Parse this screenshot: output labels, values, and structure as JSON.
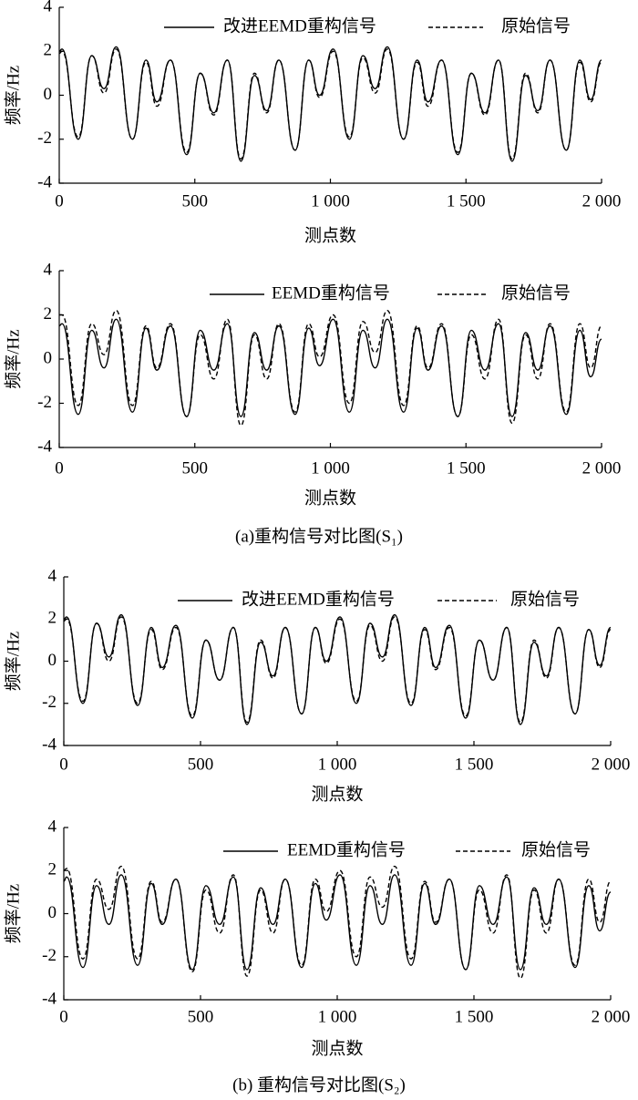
{
  "chart_data": [
    {
      "type": "line",
      "x_label": "测点数",
      "y_label": "频率/Hz",
      "x": [
        0,
        10,
        70,
        120,
        165,
        210,
        270,
        320,
        360,
        410,
        470,
        520,
        570,
        620,
        670,
        720,
        765,
        810,
        870,
        920,
        960,
        1010,
        1070,
        1120,
        1165,
        1210,
        1270,
        1320,
        1360,
        1410,
        1470,
        1520,
        1570,
        1620,
        1670,
        1720,
        1765,
        1810,
        1870,
        1920,
        1960,
        2000
      ],
      "series": [
        {
          "name": "改进EEMD重构信号",
          "color": "#000000",
          "dashed": false,
          "values": [
            2.0,
            2.1,
            -2.0,
            1.8,
            0.3,
            2.2,
            -2.0,
            1.6,
            -0.3,
            1.6,
            -2.7,
            1.0,
            -0.8,
            1.6,
            -3.0,
            0.9,
            -0.7,
            1.6,
            -2.5,
            1.6,
            0.0,
            2.1,
            -2.0,
            1.8,
            0.3,
            2.2,
            -2.0,
            1.6,
            -0.3,
            1.6,
            -2.7,
            1.0,
            -0.8,
            1.6,
            -3.0,
            0.9,
            -0.7,
            1.6,
            -2.5,
            1.6,
            -0.2,
            1.6
          ]
        },
        {
          "name": "原始信号",
          "color": "#000000",
          "dashed": true,
          "values": [
            1.9,
            2.0,
            -1.9,
            1.8,
            0.1,
            2.1,
            -2.0,
            1.5,
            -0.5,
            1.6,
            -2.6,
            1.0,
            -0.9,
            1.6,
            -2.9,
            1.0,
            -0.8,
            1.6,
            -2.5,
            1.6,
            -0.1,
            2.0,
            -1.9,
            1.7,
            0.1,
            2.1,
            -2.0,
            1.5,
            -0.5,
            1.6,
            -2.6,
            1.0,
            -0.9,
            1.6,
            -2.9,
            1.0,
            -0.8,
            1.6,
            -2.5,
            1.5,
            -0.3,
            1.5
          ]
        }
      ],
      "xlim": [
        0,
        2000
      ],
      "xticks": [
        0,
        500,
        {
          "value": 1000,
          "label": "1 000"
        },
        {
          "value": 1500,
          "label": "1 500"
        },
        {
          "value": 2000,
          "label": "2 000"
        }
      ],
      "ylim": [
        -4,
        4
      ],
      "yticks": [
        -4,
        -2,
        0,
        2,
        4
      ]
    },
    {
      "type": "line",
      "x_label": "测点数",
      "y_label": "频率/Hz",
      "caption": "(a)重构信号对比图(S₁)",
      "x": [
        0,
        10,
        70,
        120,
        165,
        210,
        270,
        320,
        360,
        410,
        470,
        520,
        570,
        620,
        670,
        720,
        765,
        810,
        870,
        920,
        960,
        1010,
        1070,
        1120,
        1165,
        1210,
        1270,
        1320,
        1360,
        1410,
        1470,
        1520,
        1570,
        1620,
        1670,
        1720,
        1765,
        1810,
        1870,
        1920,
        1960,
        2000
      ],
      "series": [
        {
          "name": "EEMD重构信号",
          "color": "#000000",
          "dashed": false,
          "values": [
            1.5,
            1.6,
            -2.5,
            1.3,
            -0.4,
            1.8,
            -2.4,
            1.4,
            -0.5,
            1.5,
            -2.6,
            1.3,
            -0.5,
            1.6,
            -2.6,
            1.2,
            -0.5,
            1.5,
            -2.5,
            1.4,
            -0.3,
            1.8,
            -2.4,
            1.3,
            -0.4,
            1.8,
            -2.4,
            1.4,
            -0.5,
            1.5,
            -2.6,
            1.3,
            -0.5,
            1.6,
            -2.6,
            1.2,
            -0.5,
            1.5,
            -2.5,
            1.3,
            -0.8,
            0.9
          ]
        },
        {
          "name": "原始信号",
          "color": "#000000",
          "dashed": true,
          "values": [
            2.0,
            2.0,
            -2.1,
            1.6,
            0.2,
            2.2,
            -2.1,
            1.5,
            -0.4,
            1.6,
            -2.6,
            1.1,
            -0.9,
            1.8,
            -3.0,
            1.1,
            -0.9,
            1.6,
            -2.4,
            1.6,
            0.1,
            2.0,
            -2.0,
            1.7,
            0.3,
            2.2,
            -2.1,
            1.5,
            -0.4,
            1.6,
            -2.6,
            1.1,
            -0.9,
            1.8,
            -2.9,
            1.1,
            -0.9,
            1.6,
            -2.4,
            1.6,
            -0.4,
            1.5
          ]
        }
      ],
      "xlim": [
        0,
        2000
      ],
      "xticks": [
        0,
        500,
        {
          "value": 1000,
          "label": "1 000"
        },
        {
          "value": 1500,
          "label": "1 500"
        },
        {
          "value": 2000,
          "label": "2 000"
        }
      ],
      "ylim": [
        -4,
        4
      ],
      "yticks": [
        -4,
        -2,
        0,
        2,
        4
      ]
    },
    {
      "type": "line",
      "x_label": "测点数",
      "y_label": "频率/Hz",
      "x": [
        0,
        10,
        70,
        120,
        165,
        210,
        270,
        320,
        360,
        410,
        470,
        520,
        570,
        620,
        670,
        720,
        765,
        810,
        870,
        920,
        960,
        1010,
        1070,
        1120,
        1165,
        1210,
        1270,
        1320,
        1360,
        1410,
        1470,
        1520,
        1570,
        1620,
        1670,
        1720,
        1765,
        1810,
        1870,
        1920,
        1960,
        2000
      ],
      "series": [
        {
          "name": "改进EEMD重构信号",
          "color": "#000000",
          "dashed": false,
          "values": [
            2.0,
            2.1,
            -2.0,
            1.8,
            0.2,
            2.2,
            -2.1,
            1.6,
            -0.3,
            1.7,
            -2.7,
            1.0,
            -0.9,
            1.6,
            -3.0,
            0.9,
            -0.7,
            1.6,
            -2.5,
            1.6,
            0.0,
            2.1,
            -2.0,
            1.8,
            0.2,
            2.2,
            -2.1,
            1.6,
            -0.3,
            1.7,
            -2.7,
            1.0,
            -0.9,
            1.6,
            -3.0,
            0.9,
            -0.7,
            1.6,
            -2.5,
            1.5,
            -0.2,
            1.6
          ]
        },
        {
          "name": "原始信号",
          "color": "#000000",
          "dashed": true,
          "values": [
            1.9,
            2.0,
            -1.9,
            1.8,
            0.0,
            2.1,
            -2.0,
            1.5,
            -0.4,
            1.6,
            -2.6,
            1.0,
            -0.9,
            1.6,
            -2.9,
            1.0,
            -0.8,
            1.6,
            -2.5,
            1.6,
            -0.1,
            2.0,
            -1.9,
            1.7,
            0.0,
            2.1,
            -2.0,
            1.5,
            -0.4,
            1.6,
            -2.6,
            1.0,
            -0.9,
            1.6,
            -2.9,
            1.0,
            -0.8,
            1.6,
            -2.5,
            1.5,
            -0.3,
            1.5
          ]
        }
      ],
      "xlim": [
        0,
        2000
      ],
      "xticks": [
        0,
        500,
        {
          "value": 1000,
          "label": "1 000"
        },
        {
          "value": 1500,
          "label": "1 500"
        },
        {
          "value": 2000,
          "label": "2 000"
        }
      ],
      "ylim": [
        -4,
        4
      ],
      "yticks": [
        -4,
        -2,
        0,
        2,
        4
      ]
    },
    {
      "type": "line",
      "x_label": "测点数",
      "y_label": "频率/Hz",
      "caption": "(b) 重构信号对比图(S₂)",
      "x": [
        0,
        10,
        70,
        120,
        165,
        210,
        270,
        320,
        360,
        410,
        470,
        520,
        570,
        620,
        670,
        720,
        765,
        810,
        870,
        920,
        960,
        1010,
        1070,
        1120,
        1165,
        1210,
        1270,
        1320,
        1360,
        1410,
        1470,
        1520,
        1570,
        1620,
        1670,
        1720,
        1765,
        1810,
        1870,
        1920,
        1960,
        2000
      ],
      "series": [
        {
          "name": "EEMD重构信号",
          "color": "#000000",
          "dashed": false,
          "values": [
            1.5,
            1.7,
            -2.5,
            1.3,
            -0.5,
            1.8,
            -2.4,
            1.4,
            -0.5,
            1.6,
            -2.6,
            1.3,
            -0.5,
            1.7,
            -2.6,
            1.2,
            -0.5,
            1.6,
            -2.5,
            1.4,
            -0.3,
            1.8,
            -2.4,
            1.3,
            -0.5,
            1.8,
            -2.4,
            1.4,
            -0.5,
            1.6,
            -2.6,
            1.3,
            -0.5,
            1.7,
            -2.6,
            1.2,
            -0.5,
            1.6,
            -2.5,
            1.3,
            -0.8,
            1.0
          ]
        },
        {
          "name": "原始信号",
          "color": "#000000",
          "dashed": true,
          "values": [
            2.0,
            2.1,
            -2.1,
            1.6,
            0.2,
            2.2,
            -2.1,
            1.5,
            -0.4,
            1.6,
            -2.7,
            1.1,
            -0.9,
            1.8,
            -2.9,
            1.1,
            -0.9,
            1.6,
            -2.4,
            1.6,
            0.1,
            2.0,
            -2.0,
            1.7,
            0.3,
            2.2,
            -2.1,
            1.5,
            -0.4,
            1.6,
            -2.6,
            1.1,
            -0.9,
            1.8,
            -3.0,
            1.1,
            -0.9,
            1.6,
            -2.4,
            1.6,
            -0.4,
            1.5
          ]
        }
      ],
      "xlim": [
        0,
        2000
      ],
      "xticks": [
        0,
        500,
        {
          "value": 1000,
          "label": "1 000"
        },
        {
          "value": 1500,
          "label": "1 500"
        },
        {
          "value": 2000,
          "label": "2 000"
        }
      ],
      "ylim": [
        -4,
        4
      ],
      "yticks": [
        -4,
        -2,
        0,
        2,
        4
      ]
    }
  ]
}
